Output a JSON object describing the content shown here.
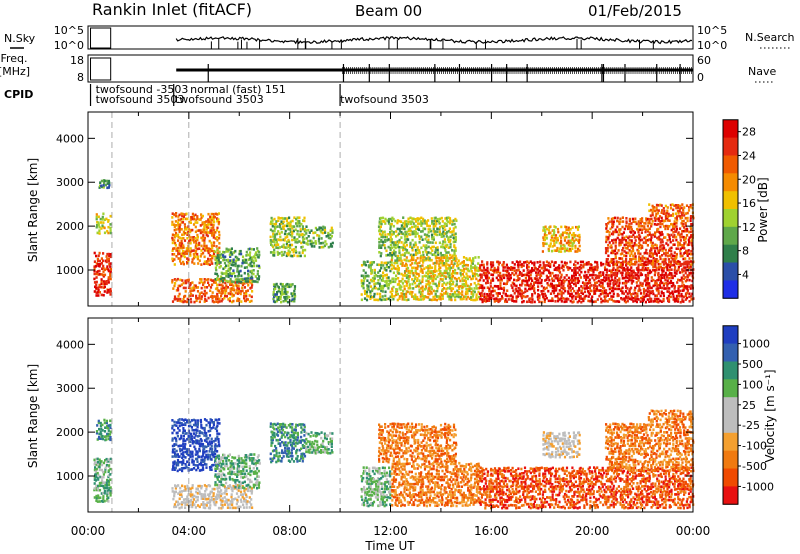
{
  "header": {
    "site": "Rankin Inlet (fitACF)",
    "beam": "Beam 00",
    "date": "01/Feb/2015"
  },
  "left_labels": {
    "nsky": "N.Sky",
    "freq": "Freq.",
    "freq_unit": "[MHz]",
    "cpid": "CPID"
  },
  "right_labels": {
    "nsearch": "N.Search",
    "nave": "Nave"
  },
  "noise_panel": {
    "ytick_top": "10^5",
    "ytick_bottom": "10^0",
    "rtick_top": "10^5",
    "rtick_bottom": "10^0"
  },
  "freq_panel": {
    "ytick_top": "18",
    "ytick_bottom": "8",
    "rtick_top": "60",
    "rtick_bottom": "0"
  },
  "cpid_entries": [
    {
      "text": "twofsound -3503",
      "row": 0,
      "time": 0.3
    },
    {
      "text": "normal (fast) 151",
      "row": 0,
      "time": 4.05
    },
    {
      "text": "twofsound 3503",
      "row": 1,
      "time": 0.3
    },
    {
      "text": "twofsound 3503",
      "row": 1,
      "time": 3.45
    },
    {
      "text": "twofsound 3503",
      "row": 1,
      "time": 10.0
    }
  ],
  "colors": {
    "power": [
      "#1f2ee6",
      "#2b4fa8",
      "#2f7f4a",
      "#5fa84a",
      "#9fd230",
      "#f0c000",
      "#f58b00",
      "#f05a00",
      "#e52a10",
      "#dd0000"
    ],
    "velocity": [
      "#e81010",
      "#f04a00",
      "#f07a10",
      "#f4a030",
      "#bdbdbd",
      "#bdbdbd",
      "#58b048",
      "#2f9070",
      "#3360b0",
      "#1f3ec0"
    ]
  },
  "chart_data": [
    {
      "type": "heatmap",
      "name": "power",
      "ylabel": "Slant Range [km]",
      "xticks": [
        "00:00",
        "04:00",
        "08:00",
        "12:00",
        "16:00",
        "20:00",
        "00:00"
      ],
      "yticks": [
        1000,
        2000,
        3000,
        4000
      ],
      "ylim": [
        180,
        4600
      ],
      "xlim": [
        0,
        24
      ],
      "colorbar": {
        "label": "Power [dB]",
        "ticks": [
          4,
          8,
          12,
          16,
          20,
          24,
          28
        ],
        "range": [
          0,
          30
        ]
      },
      "regions": [
        {
          "t0": 0.2,
          "t1": 0.9,
          "r0": 400,
          "r1": 1400,
          "v": 26
        },
        {
          "t0": 0.3,
          "t1": 0.9,
          "r0": 1800,
          "r1": 2300,
          "v": 14
        },
        {
          "t0": 0.4,
          "t1": 0.85,
          "r0": 2850,
          "r1": 3050,
          "v": 8
        },
        {
          "t0": 3.3,
          "t1": 5.2,
          "r0": 1100,
          "r1": 2300,
          "v": 21
        },
        {
          "t0": 3.3,
          "t1": 6.5,
          "r0": 250,
          "r1": 800,
          "v": 22
        },
        {
          "t0": 5.0,
          "t1": 6.8,
          "r0": 700,
          "r1": 1500,
          "v": 10
        },
        {
          "t0": 7.2,
          "t1": 8.6,
          "r0": 1300,
          "r1": 2200,
          "v": 13
        },
        {
          "t0": 8.6,
          "t1": 9.7,
          "r0": 1500,
          "r1": 2000,
          "v": 11
        },
        {
          "t0": 7.3,
          "t1": 8.2,
          "r0": 250,
          "r1": 700,
          "v": 10
        },
        {
          "t0": 10.8,
          "t1": 12.0,
          "r0": 300,
          "r1": 1200,
          "v": 12
        },
        {
          "t0": 11.5,
          "t1": 14.6,
          "r0": 1300,
          "r1": 2200,
          "v": 13
        },
        {
          "t0": 12.0,
          "t1": 15.5,
          "r0": 300,
          "r1": 1300,
          "v": 16
        },
        {
          "t0": 15.5,
          "t1": 24,
          "r0": 250,
          "r1": 1200,
          "v": 27
        },
        {
          "t0": 20.5,
          "t1": 24,
          "r0": 1100,
          "r1": 2200,
          "v": 24
        },
        {
          "t0": 18.0,
          "t1": 19.5,
          "r0": 1400,
          "r1": 2000,
          "v": 18
        },
        {
          "t0": 22.2,
          "t1": 24,
          "r0": 2200,
          "r1": 2500,
          "v": 22
        }
      ]
    },
    {
      "type": "heatmap",
      "name": "velocity",
      "ylabel": "Slant Range [km]",
      "xlabel": "Time UT",
      "xticks": [
        "00:00",
        "04:00",
        "08:00",
        "12:00",
        "16:00",
        "20:00",
        "00:00"
      ],
      "yticks": [
        1000,
        2000,
        3000,
        4000
      ],
      "ylim": [
        180,
        4600
      ],
      "xlim": [
        0,
        24
      ],
      "colorbar": {
        "label": "Velocity [m s⁻¹]",
        "ticks": [
          1000,
          500,
          100,
          25,
          -25,
          -100,
          -500,
          -1000
        ]
      },
      "regions": [
        {
          "t0": 0.2,
          "t1": 0.9,
          "r0": 400,
          "r1": 1400,
          "v": 6
        },
        {
          "t0": 0.3,
          "t1": 0.9,
          "r0": 1800,
          "r1": 2300,
          "v": 7
        },
        {
          "t0": 3.3,
          "t1": 5.2,
          "r0": 1100,
          "r1": 2300,
          "v": 9
        },
        {
          "t0": 3.3,
          "t1": 6.5,
          "r0": 250,
          "r1": 800,
          "v": 4
        },
        {
          "t0": 5.0,
          "t1": 6.8,
          "r0": 700,
          "r1": 1500,
          "v": 6
        },
        {
          "t0": 7.2,
          "t1": 8.6,
          "r0": 1300,
          "r1": 2200,
          "v": 7
        },
        {
          "t0": 8.6,
          "t1": 9.7,
          "r0": 1500,
          "r1": 2000,
          "v": 6
        },
        {
          "t0": 10.8,
          "t1": 12.0,
          "r0": 300,
          "r1": 1200,
          "v": 6
        },
        {
          "t0": 11.5,
          "t1": 14.6,
          "r0": 1300,
          "r1": 2200,
          "v": 2
        },
        {
          "t0": 12.0,
          "t1": 15.5,
          "r0": 300,
          "r1": 1300,
          "v": 2
        },
        {
          "t0": 15.5,
          "t1": 24,
          "r0": 250,
          "r1": 1200,
          "v": 1
        },
        {
          "t0": 20.5,
          "t1": 24,
          "r0": 1100,
          "r1": 2200,
          "v": 2
        },
        {
          "t0": 18.0,
          "t1": 19.5,
          "r0": 1400,
          "r1": 2000,
          "v": 4
        },
        {
          "t0": 22.2,
          "t1": 24,
          "r0": 2200,
          "r1": 2500,
          "v": 2
        }
      ]
    }
  ]
}
